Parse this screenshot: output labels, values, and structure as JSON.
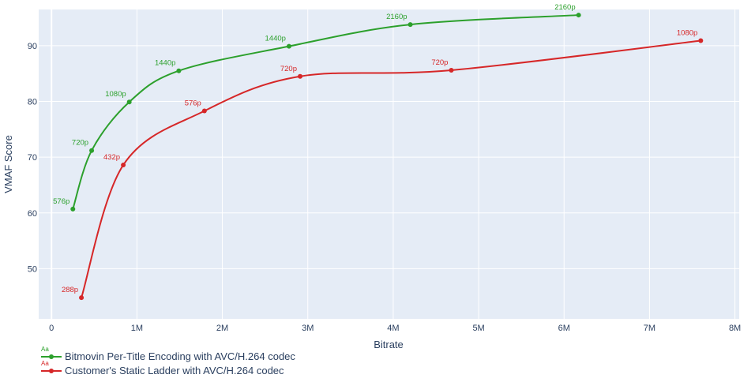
{
  "chart_data": {
    "type": "line",
    "xlabel": "Bitrate",
    "ylabel": "VMAF Score",
    "xlim": [
      -150000,
      8050000
    ],
    "ylim": [
      41,
      96.5
    ],
    "xticks": [
      0,
      1000000,
      2000000,
      3000000,
      4000000,
      5000000,
      6000000,
      7000000,
      8000000
    ],
    "xtick_labels": [
      "0",
      "1M",
      "2M",
      "3M",
      "4M",
      "5M",
      "6M",
      "7M",
      "8M"
    ],
    "yticks": [
      50,
      60,
      70,
      80,
      90
    ],
    "ytick_labels": [
      "50",
      "60",
      "70",
      "80",
      "90"
    ],
    "grid": true,
    "legend_position": "bottom-left",
    "series": [
      {
        "name": "Bitmovin Per-Title Encoding with AVC/H.264 codec",
        "color": "#2ca02c",
        "points": [
          {
            "x": 250000,
            "y": 60.7,
            "label": "576p"
          },
          {
            "x": 470000,
            "y": 71.2,
            "label": "720p"
          },
          {
            "x": 910000,
            "y": 79.9,
            "label": "1080p"
          },
          {
            "x": 1490000,
            "y": 85.5,
            "label": "1440p"
          },
          {
            "x": 2780000,
            "y": 89.9,
            "label": "1440p"
          },
          {
            "x": 4200000,
            "y": 93.8,
            "label": "2160p"
          },
          {
            "x": 6170000,
            "y": 95.5,
            "label": "2160p"
          }
        ]
      },
      {
        "name": "Customer's Static Ladder with AVC/H.264 codec",
        "color": "#d62728",
        "points": [
          {
            "x": 350000,
            "y": 44.8,
            "label": "288p"
          },
          {
            "x": 840000,
            "y": 68.6,
            "label": "432p"
          },
          {
            "x": 1790000,
            "y": 78.3,
            "label": "576p"
          },
          {
            "x": 2910000,
            "y": 84.5,
            "label": "720p"
          },
          {
            "x": 4680000,
            "y": 85.6,
            "label": "720p"
          },
          {
            "x": 7600000,
            "y": 90.9,
            "label": "1080p"
          }
        ]
      }
    ]
  },
  "legend": {
    "glyph_text": "Aa"
  }
}
